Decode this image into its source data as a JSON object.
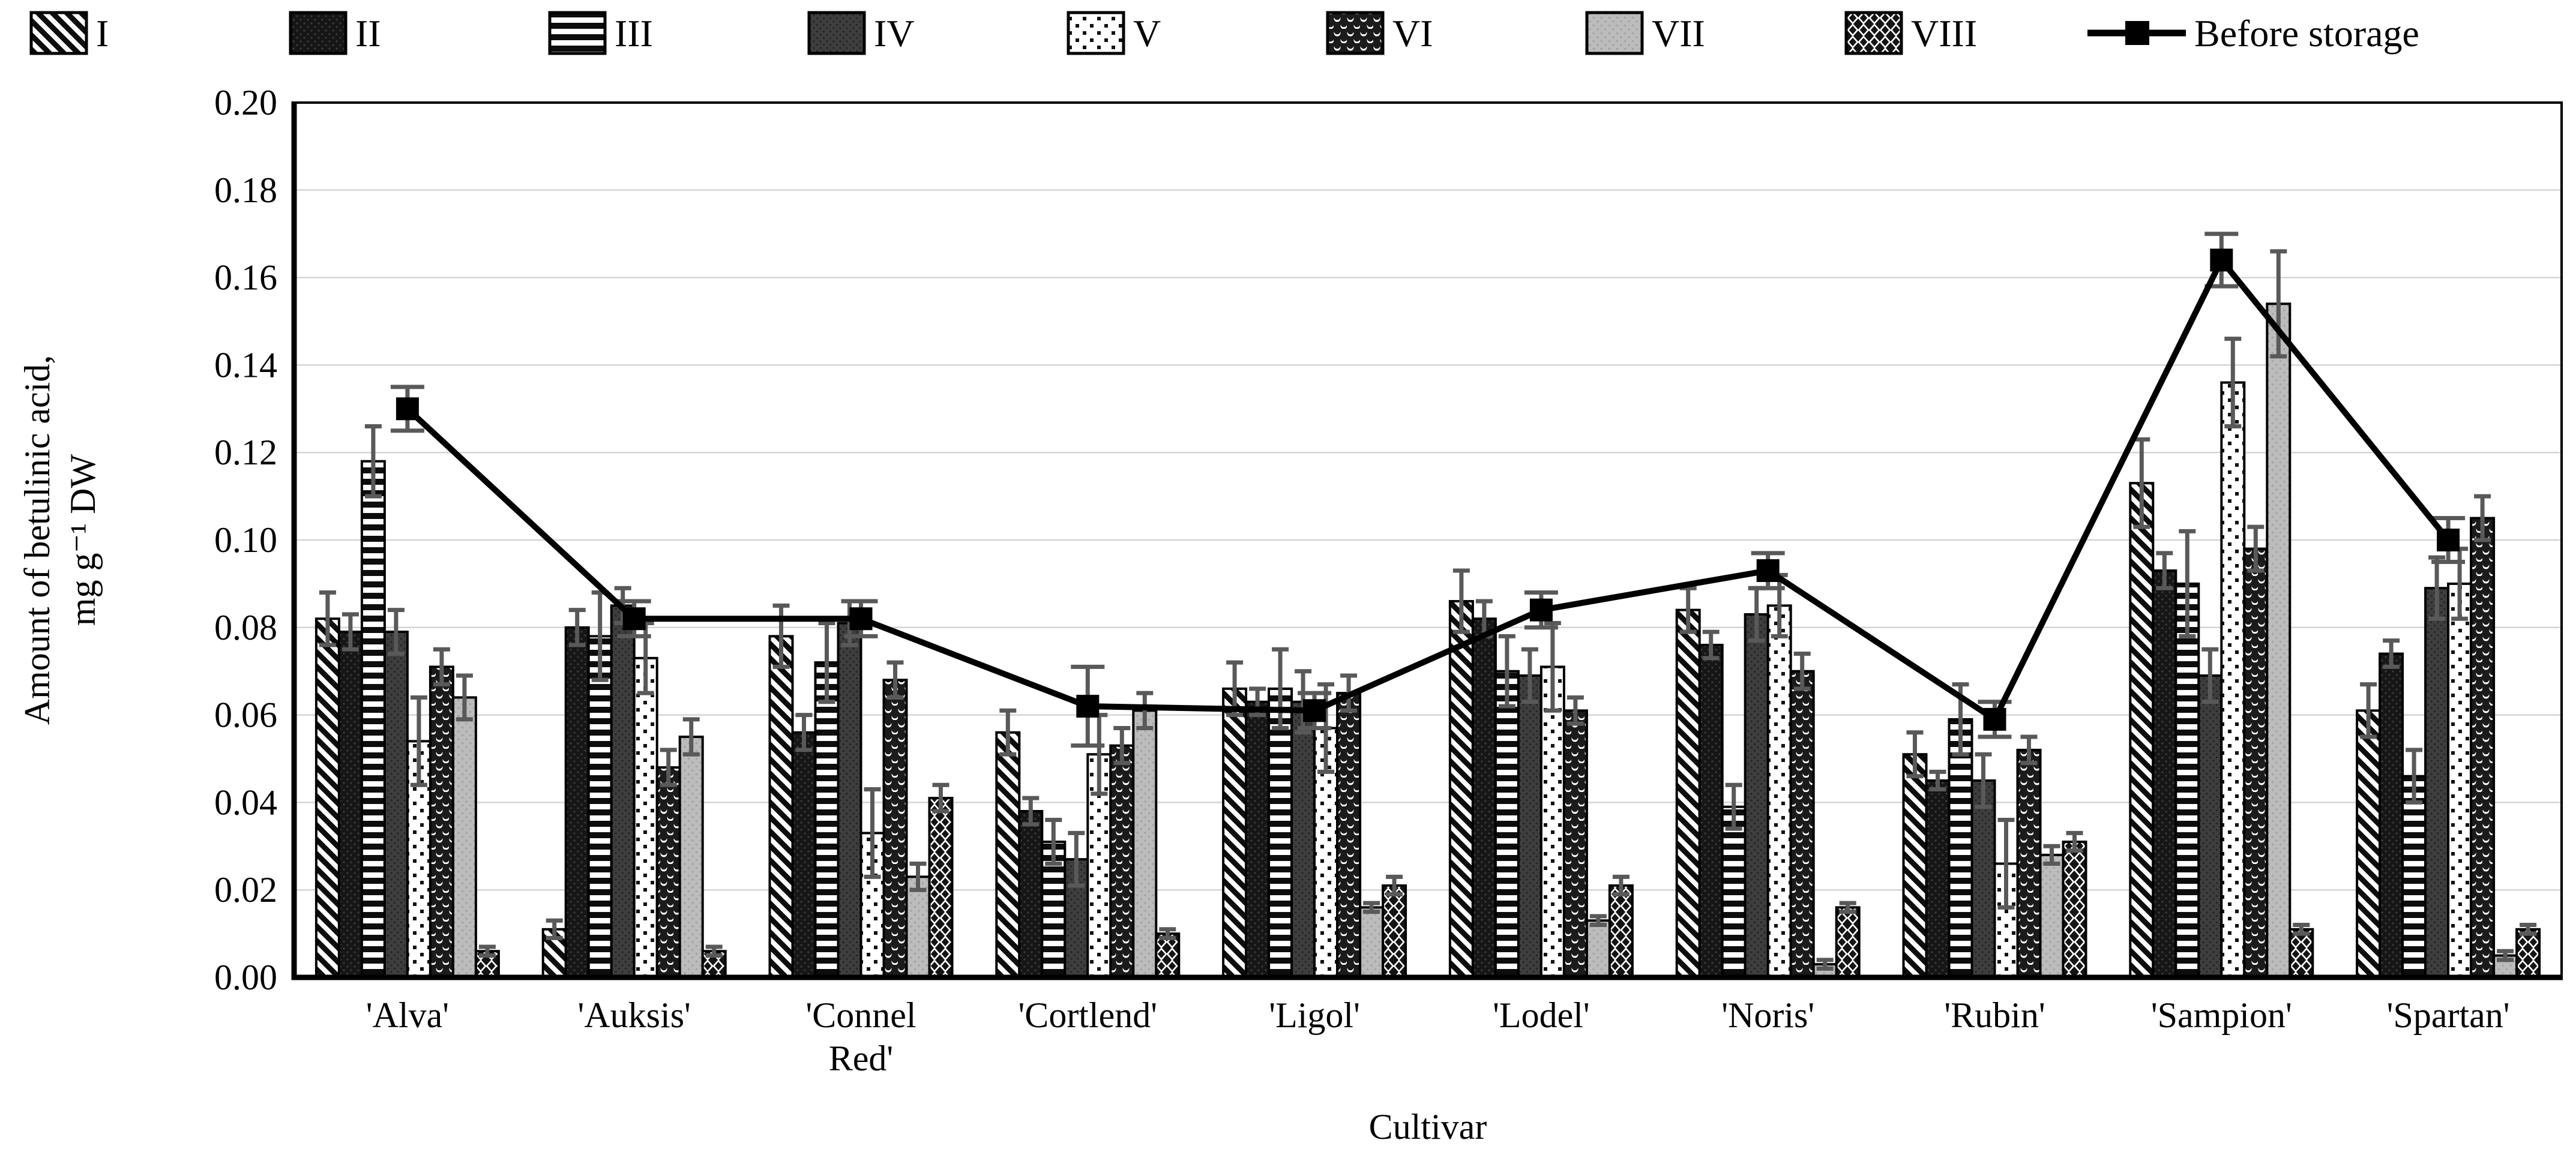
{
  "chart_data": {
    "type": "bar",
    "title": "",
    "xlabel": "Cultivar",
    "ylabel": "Amount of betulinic acid, mg g⁻¹ DW",
    "ylabel_line1": "Amount of betulinic acid,",
    "ylabel_line2": "mg g⁻¹ DW",
    "categories": [
      "'Alva'",
      "'Auksis'",
      "'Connel Red'",
      "'Cortlend'",
      "'Ligol'",
      "'Lodel'",
      "'Noris'",
      "'Rubin'",
      "'Sampion'",
      "'Spartan'"
    ],
    "category_label_lines": [
      [
        "'Alva'"
      ],
      [
        "'Auksis'"
      ],
      [
        "'Connel",
        "Red'"
      ],
      [
        "'Cortlend'"
      ],
      [
        "'Ligol'"
      ],
      [
        "'Lodel'"
      ],
      [
        "'Noris'"
      ],
      [
        "'Rubin'"
      ],
      [
        "'Sampion'"
      ],
      [
        "'Spartan'"
      ]
    ],
    "ylim": [
      0,
      0.2
    ],
    "ytick_step": 0.02,
    "ytick_decimals": 2,
    "grid": true,
    "legend_position": "top",
    "series": [
      {
        "name": "I",
        "pattern": "diagonal-stripes",
        "values": [
          0.082,
          0.011,
          0.078,
          0.056,
          0.066,
          0.086,
          0.084,
          0.051,
          0.113,
          0.061
        ],
        "errors": [
          0.006,
          0.002,
          0.007,
          0.005,
          0.006,
          0.007,
          0.005,
          0.005,
          0.01,
          0.006
        ]
      },
      {
        "name": "II",
        "pattern": "black-fine-dots",
        "values": [
          0.079,
          0.08,
          0.056,
          0.038,
          0.063,
          0.082,
          0.076,
          0.045,
          0.093,
          0.074
        ],
        "errors": [
          0.004,
          0.004,
          0.004,
          0.003,
          0.003,
          0.004,
          0.003,
          0.002,
          0.004,
          0.003
        ]
      },
      {
        "name": "III",
        "pattern": "horizontal-stripes",
        "values": [
          0.118,
          0.078,
          0.072,
          0.031,
          0.066,
          0.07,
          0.039,
          0.059,
          0.09,
          0.046
        ],
        "errors": [
          0.008,
          0.01,
          0.009,
          0.005,
          0.009,
          0.008,
          0.005,
          0.008,
          0.012,
          0.006
        ]
      },
      {
        "name": "IV",
        "pattern": "darkgray-dots",
        "values": [
          0.079,
          0.085,
          0.081,
          0.027,
          0.063,
          0.069,
          0.083,
          0.045,
          0.069,
          0.089
        ],
        "errors": [
          0.005,
          0.004,
          0.005,
          0.006,
          0.007,
          0.006,
          0.006,
          0.006,
          0.006,
          0.007
        ]
      },
      {
        "name": "V",
        "pattern": "white-dots",
        "values": [
          0.054,
          0.073,
          0.033,
          0.051,
          0.057,
          0.071,
          0.085,
          0.026,
          0.136,
          0.09
        ],
        "errors": [
          0.01,
          0.008,
          0.01,
          0.009,
          0.01,
          0.01,
          0.007,
          0.01,
          0.01,
          0.008
        ]
      },
      {
        "name": "VI",
        "pattern": "dark-crescents",
        "values": [
          0.071,
          0.048,
          0.068,
          0.053,
          0.065,
          0.061,
          0.07,
          0.052,
          0.098,
          0.105
        ],
        "errors": [
          0.004,
          0.004,
          0.004,
          0.004,
          0.004,
          0.003,
          0.004,
          0.003,
          0.005,
          0.005
        ]
      },
      {
        "name": "VII",
        "pattern": "light-gray",
        "values": [
          0.064,
          0.055,
          0.023,
          0.061,
          0.016,
          0.013,
          0.003,
          0.028,
          0.154,
          0.005
        ],
        "errors": [
          0.005,
          0.004,
          0.003,
          0.004,
          0.001,
          0.001,
          0.001,
          0.002,
          0.012,
          0.001
        ]
      },
      {
        "name": "VIII",
        "pattern": "diamond-lattice",
        "values": [
          0.006,
          0.006,
          0.041,
          0.01,
          0.021,
          0.021,
          0.016,
          0.031,
          0.011,
          0.011
        ],
        "errors": [
          0.001,
          0.001,
          0.003,
          0.001,
          0.002,
          0.002,
          0.001,
          0.002,
          0.001,
          0.001
        ]
      }
    ],
    "line_series": {
      "name": "Before storage",
      "marker": "black-square",
      "values": [
        0.13,
        0.082,
        0.082,
        0.062,
        0.061,
        0.084,
        0.093,
        0.059,
        0.164,
        0.1
      ],
      "errors": [
        0.005,
        0.004,
        0.004,
        0.009,
        0.004,
        0.004,
        0.004,
        0.004,
        0.006,
        0.005
      ]
    },
    "colors": {
      "background": "#ffffff",
      "bar_outline": "#000000",
      "near_black": "#161616",
      "dark_gray": "#3e3e3e",
      "light_gray": "#bcbcbc",
      "gridline": "#d4d4d4",
      "error_bar": "#595959",
      "line": "#000000"
    }
  }
}
